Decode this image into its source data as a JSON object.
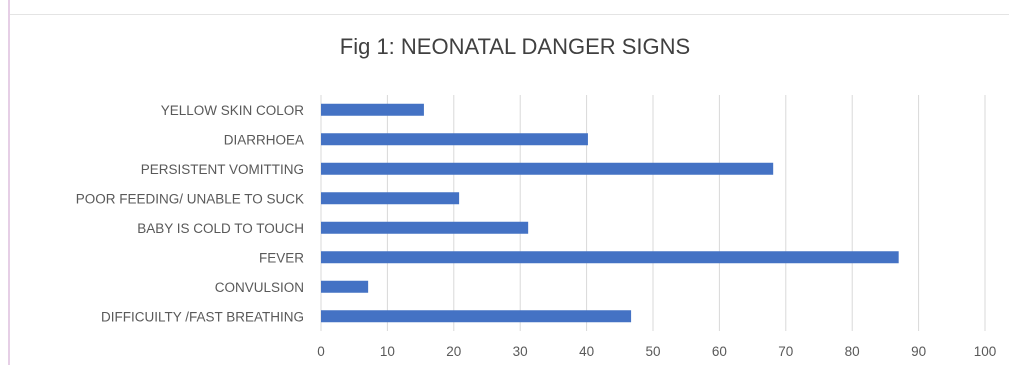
{
  "chart_data": {
    "type": "bar",
    "orientation": "horizontal",
    "title": "Fig 1: NEONATAL DANGER SIGNS",
    "categories": [
      "YELLOW SKIN COLOR",
      "DIARRHOEA",
      "PERSISTENT VOMITTING",
      "POOR FEEDING/ UNABLE TO SUCK",
      "BABY IS COLD TO TOUCH",
      "FEVER",
      "CONVULSION",
      "DIFFICUILTY /FAST BREATHING"
    ],
    "values": [
      15.5,
      40.2,
      68.1,
      20.8,
      31.2,
      87,
      7.1,
      46.7
    ],
    "xlim": [
      0,
      100
    ],
    "xticks": [
      "0",
      "10",
      "20",
      "30",
      "40",
      "50",
      "60",
      "70",
      "80",
      "90",
      "100"
    ],
    "grid": true,
    "bar_color": "#4472c4"
  }
}
